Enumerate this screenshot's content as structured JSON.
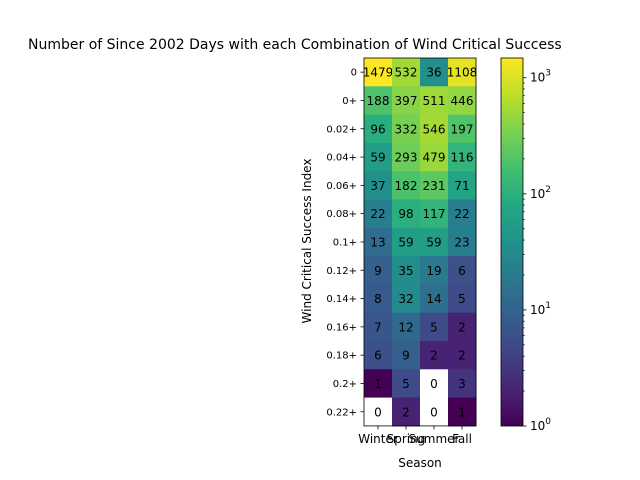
{
  "chart_data": {
    "type": "heatmap",
    "title": "Number of Since 2002 Days with each Combination of Wind Critical Success",
    "xlabel": "Season",
    "ylabel": "Wind Critical Success Index",
    "x_categories": [
      "Winter",
      "Spring",
      "Summer",
      "Fall"
    ],
    "y_categories": [
      "0",
      "0+",
      "0.02+",
      "0.04+",
      "0.06+",
      "0.08+",
      "0.1+",
      "0.12+",
      "0.14+",
      "0.16+",
      "0.18+",
      "0.2+",
      "0.22+"
    ],
    "values": [
      [
        1479,
        532,
        36,
        1108
      ],
      [
        188,
        397,
        511,
        446
      ],
      [
        96,
        332,
        546,
        197
      ],
      [
        59,
        293,
        479,
        116
      ],
      [
        37,
        182,
        231,
        71
      ],
      [
        22,
        98,
        117,
        22
      ],
      [
        13,
        59,
        59,
        23
      ],
      [
        9,
        35,
        19,
        6
      ],
      [
        8,
        32,
        14,
        5
      ],
      [
        7,
        12,
        5,
        2
      ],
      [
        6,
        9,
        2,
        2
      ],
      [
        1,
        5,
        0,
        3
      ],
      [
        0,
        2,
        0,
        1
      ]
    ],
    "colorbar": {
      "scale": "log",
      "colormap": "viridis",
      "range": [
        1,
        1479
      ],
      "ticks": [
        "10^0",
        "10^1",
        "10^2",
        "10^3"
      ]
    },
    "zero_cells_color": "#ffffff"
  }
}
